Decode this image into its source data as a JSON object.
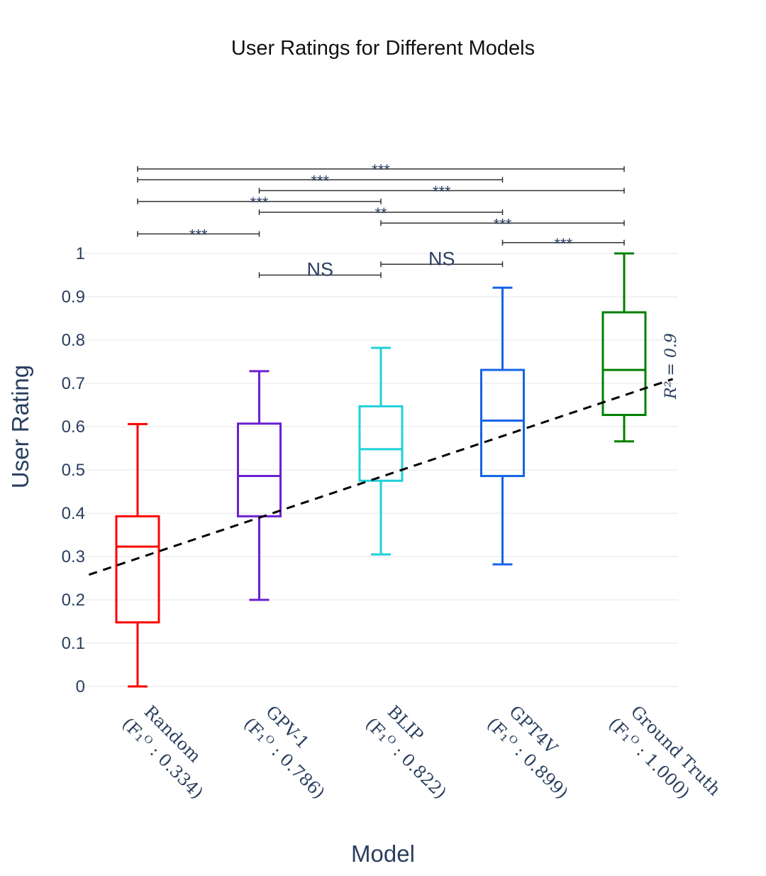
{
  "chart_data": {
    "type": "box",
    "title": "User Ratings for Different Models",
    "xlabel": "Model",
    "ylabel": "User Rating",
    "ylim": [
      0,
      1
    ],
    "yticks": [
      "0",
      "0.1",
      "0.2",
      "0.3",
      "0.4",
      "0.5",
      "0.6",
      "0.7",
      "0.8",
      "0.9",
      "1"
    ],
    "categories": [
      {
        "name": "Random",
        "f1_label": "(F₁ᴼ : 0.334)",
        "color": "#ff0000",
        "min": 0.0,
        "q1": 0.148,
        "median": 0.323,
        "q3": 0.393,
        "max": 0.606
      },
      {
        "name": "GPV-1",
        "f1_label": "(F₁ᴼ : 0.786)",
        "color": "#6a1fd0",
        "min": 0.2,
        "q1": 0.393,
        "median": 0.486,
        "q3": 0.607,
        "max": 0.728
      },
      {
        "name": "BLIP",
        "f1_label": "(F₁ᴼ : 0.822)",
        "color": "#1fd0d9",
        "min": 0.305,
        "q1": 0.475,
        "median": 0.548,
        "q3": 0.647,
        "max": 0.782
      },
      {
        "name": "GPT4V",
        "f1_label": "(F₁ᴼ : 0.899)",
        "color": "#1664e6",
        "min": 0.282,
        "q1": 0.486,
        "median": 0.614,
        "q3": 0.731,
        "max": 0.921
      },
      {
        "name": "Ground Truth",
        "f1_label": "(F₁ᴼ : 1.000)",
        "color": "#008000",
        "min": 0.566,
        "q1": 0.627,
        "median": 0.731,
        "q3": 0.864,
        "max": 1.0
      }
    ],
    "trendline": {
      "start": {
        "x": -0.4,
        "y": 0.258
      },
      "end": {
        "x": 4.4,
        "y": 0.71
      },
      "style": "dashed",
      "color": "#000000"
    },
    "r2_label": "R² = 0.9",
    "significance": [
      {
        "from": 0,
        "to": 4,
        "label": "***",
        "y": 1.195
      },
      {
        "from": 0,
        "to": 3,
        "label": "***",
        "y": 1.17
      },
      {
        "from": 1,
        "to": 4,
        "label": "***",
        "y": 1.145
      },
      {
        "from": 0,
        "to": 2,
        "label": "***",
        "y": 1.12
      },
      {
        "from": 1,
        "to": 3,
        "label": "**",
        "y": 1.095
      },
      {
        "from": 2,
        "to": 4,
        "label": "***",
        "y": 1.07
      },
      {
        "from": 0,
        "to": 1,
        "label": "***",
        "y": 1.045
      },
      {
        "from": 3,
        "to": 4,
        "label": "***",
        "y": 1.025
      },
      {
        "from": 2,
        "to": 3,
        "label": "NS",
        "y": 0.975
      },
      {
        "from": 1,
        "to": 2,
        "label": "NS",
        "y": 0.95
      }
    ]
  }
}
